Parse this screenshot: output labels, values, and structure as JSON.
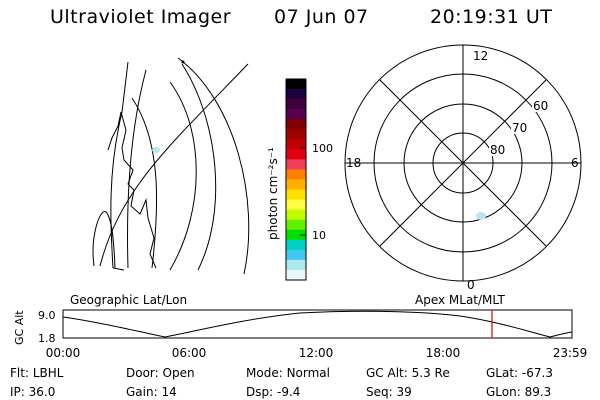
{
  "header": {
    "title": "Ultraviolet Imager",
    "date": "07 Jun 07",
    "time": "20:19:31 UT"
  },
  "left_panel_label": "Geographic Lat/Lon",
  "right_panel_label": "Apex MLat/MLT",
  "colorbar": {
    "unit_label": "photon cm⁻²s⁻¹",
    "tick_labels": [
      "100",
      "10"
    ],
    "colors": [
      "#000000",
      "#1e0040",
      "#40003c",
      "#5a0050",
      "#800000",
      "#a00000",
      "#c00000",
      "#e00010",
      "#f0405a",
      "#ff8000",
      "#ffb000",
      "#ffe000",
      "#ffff40",
      "#c0ff00",
      "#60f000",
      "#00e000",
      "#00d0c0",
      "#40c8f0",
      "#b0e8f0",
      "#e8f8f8"
    ]
  },
  "polar_plot": {
    "mlt_labels": {
      "top": "12",
      "left": "18",
      "right": "6",
      "bottom": "0"
    },
    "lat_labels": [
      "60",
      "70",
      "80"
    ]
  },
  "altitude_strip": {
    "axis_label": "GC Alt",
    "y_ticks": [
      "9.0",
      "1.8"
    ],
    "time_ticks": [
      "00:00",
      "06:00",
      "12:00",
      "18:00",
      "23:59"
    ],
    "marker_color": "#e00000"
  },
  "status": {
    "row1": [
      {
        "label": "Flt:",
        "value": "LBHL"
      },
      {
        "label": "Door:",
        "value": "Open"
      },
      {
        "label": "Mode:",
        "value": "Normal"
      },
      {
        "label": "GC Alt:",
        "value": "5.3 Re"
      },
      {
        "label": "GLat:",
        "value": "-67.3"
      }
    ],
    "row2": [
      {
        "label": "IP:",
        "value": "36.0"
      },
      {
        "label": "Gain:",
        "value": "14"
      },
      {
        "label": "Dsp:",
        "value": "-9.4"
      },
      {
        "label": "Seq:",
        "value": "39"
      },
      {
        "label": "GLon:",
        "value": "89.3"
      }
    ]
  }
}
